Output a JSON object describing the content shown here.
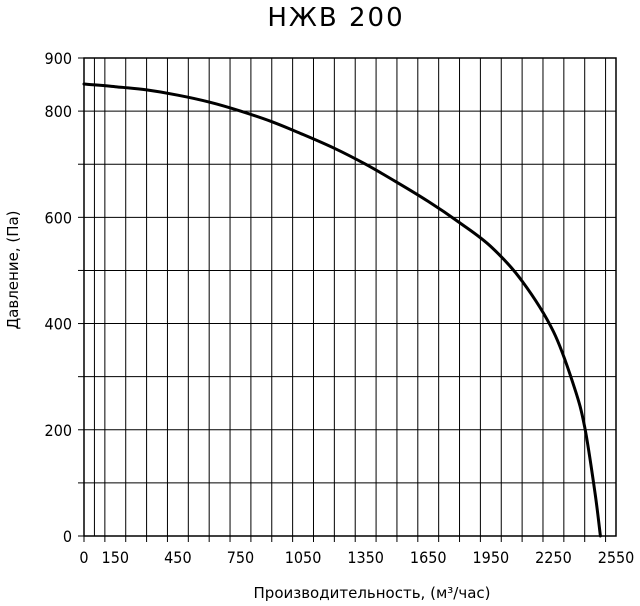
{
  "chart_data": {
    "type": "line",
    "title": "НЖВ 200",
    "xlabel": "Производительность, (м³/час)",
    "ylabel": "Давление, (Па)",
    "xlim": [
      0,
      2550
    ],
    "ylim": [
      0,
      900
    ],
    "x_tick_labels": [
      "0",
      "150",
      "450",
      "750",
      "1050",
      "1350",
      "1650",
      "1950",
      "2250",
      "2550"
    ],
    "x_tick_values": [
      0,
      150,
      450,
      750,
      1050,
      1350,
      1650,
      1950,
      2250,
      2550
    ],
    "y_tick_labels": [
      "0",
      "200",
      "400",
      "600",
      "800",
      "900"
    ],
    "y_tick_values": [
      0,
      200,
      400,
      600,
      800,
      900
    ],
    "grid": true,
    "series": [
      {
        "name": "",
        "x": [
          0,
          150,
          300,
          450,
          600,
          750,
          900,
          1050,
          1200,
          1350,
          1500,
          1650,
          1800,
          1950,
          2100,
          2250,
          2350,
          2400,
          2450,
          2475
        ],
        "y": [
          851,
          846,
          840,
          830,
          817,
          800,
          780,
          756,
          730,
          700,
          666,
          630,
          590,
          545,
          480,
          385,
          280,
          205,
          80,
          0
        ]
      }
    ]
  }
}
